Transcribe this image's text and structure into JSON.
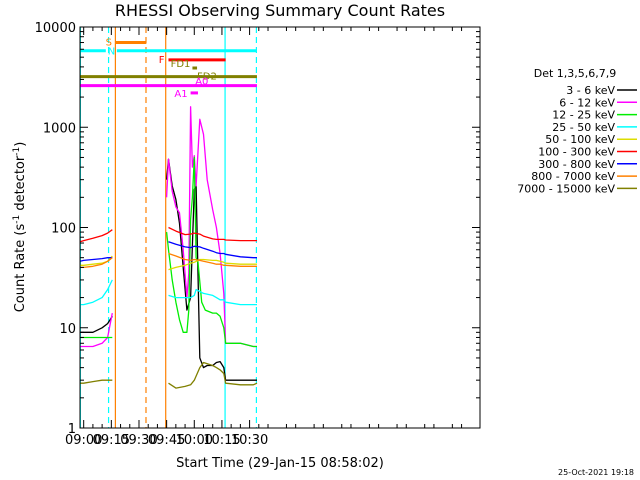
{
  "chart_data": {
    "type": "line",
    "title": "RHESSI Observing Summary Count Rates",
    "xlabel": "Start Time (29-Jan-15 08:58:02)",
    "ylabel_main": "Count Rate (s",
    "ylabel_exp1": "-1",
    "ylabel_mid": " detector",
    "ylabel_exp2": "-1",
    "ylabel_end": ")",
    "x_range_min": [
      538,
      755
    ],
    "y_log_range": [
      1,
      10000
    ],
    "x_ticks": [
      {
        "label": "09:00",
        "min": 540
      },
      {
        "label": "09:15",
        "min": 555
      },
      {
        "label": "09:30",
        "min": 570
      },
      {
        "label": "09:45",
        "min": 585
      },
      {
        "label": "10:00",
        "min": 600
      },
      {
        "label": "10:15",
        "min": 615
      },
      {
        "label": "10:30",
        "min": 630
      }
    ],
    "y_ticks": [
      {
        "label": "1",
        "v": 1
      },
      {
        "label": "10",
        "v": 10
      },
      {
        "label": "100",
        "v": 100
      },
      {
        "label": "1000",
        "v": 1000
      },
      {
        "label": "10000",
        "v": 10000
      }
    ],
    "legend_title": "Det 1,3,5,6,7,9",
    "series": [
      {
        "name": "3 - 6 keV",
        "color": "#000000",
        "x": [
          538,
          540,
          545,
          550,
          553,
          555.5,
          558,
          583,
          585,
          586,
          588,
          590,
          592,
          594,
          596,
          598,
          600,
          601,
          603,
          605,
          607,
          610,
          612,
          614,
          616,
          617,
          625,
          632,
          634
        ],
        "y": [
          9,
          9,
          9,
          10,
          11,
          13,
          null,
          null,
          300,
          480,
          260,
          190,
          110,
          40,
          15,
          20,
          240,
          260,
          5,
          4,
          4.2,
          4.2,
          4.5,
          4.6,
          4,
          3,
          3,
          3,
          3
        ]
      },
      {
        "name": "6 - 12 keV",
        "color": "#ff00ff",
        "x": [
          538,
          540,
          545,
          550,
          553,
          555.5,
          558,
          583,
          585,
          586,
          588,
          590,
          592,
          594,
          596,
          597,
          598,
          599,
          600,
          601,
          603,
          605,
          607,
          610,
          612,
          614,
          616,
          617,
          625,
          632,
          634
        ],
        "y": [
          6.5,
          6.5,
          6.5,
          7,
          8,
          14,
          null,
          null,
          200,
          480,
          230,
          160,
          140,
          60,
          20,
          35,
          1600,
          400,
          520,
          260,
          1200,
          850,
          300,
          150,
          100,
          55,
          22,
          7,
          7,
          6.5,
          6.5
        ]
      },
      {
        "name": "12 - 25 keV",
        "color": "#00ee00",
        "x": [
          538,
          540,
          545,
          550,
          553,
          555.5,
          558,
          583,
          585,
          586,
          588,
          590,
          592,
          594,
          596,
          597,
          598,
          599,
          600,
          601,
          602,
          604,
          606,
          610,
          612,
          614,
          616,
          617,
          625,
          632,
          634
        ],
        "y": [
          8,
          8,
          8,
          8,
          8,
          8,
          null,
          null,
          90,
          60,
          30,
          18,
          12,
          9,
          9,
          15,
          120,
          200,
          500,
          50,
          45,
          18,
          15,
          14,
          14,
          13,
          10,
          7,
          7,
          6.5,
          6.5
        ]
      },
      {
        "name": "25 - 50 keV",
        "color": "#00ffff",
        "x": [
          538,
          540,
          545,
          550,
          553,
          555.5,
          558,
          583,
          586,
          590,
          595,
          598,
          600,
          601,
          603,
          605,
          610,
          612,
          614,
          616,
          617,
          625,
          632,
          634
        ],
        "y": [
          17,
          17,
          18,
          20,
          24,
          30,
          null,
          null,
          21,
          20,
          20,
          20,
          21,
          24,
          23,
          22,
          21,
          20,
          19,
          19,
          18,
          17,
          17,
          17
        ]
      },
      {
        "name": "50 - 100 keV",
        "color": "#dddd00",
        "x": [
          538,
          540,
          545,
          550,
          553,
          555.5,
          558,
          583,
          586,
          590,
          595,
          598,
          600,
          603,
          605,
          610,
          612,
          614,
          616,
          617,
          625,
          632,
          634
        ],
        "y": [
          42,
          42,
          43,
          44,
          46,
          52,
          null,
          null,
          38,
          40,
          42,
          44,
          45,
          48,
          48,
          47,
          47,
          46,
          45,
          44,
          43,
          43,
          43
        ]
      },
      {
        "name": "100 - 300 keV",
        "color": "#ff0000",
        "x": [
          538,
          540,
          545,
          550,
          553,
          555.5,
          558,
          583,
          586,
          590,
          595,
          598,
          600,
          603,
          605,
          610,
          612,
          614,
          616,
          617,
          625,
          632,
          634
        ],
        "y": [
          72,
          74,
          78,
          83,
          88,
          95,
          null,
          null,
          100,
          92,
          85,
          86,
          88,
          86,
          82,
          77,
          76,
          76,
          76,
          75,
          74,
          74,
          74
        ]
      },
      {
        "name": "300 - 800 keV",
        "color": "#0000ff",
        "x": [
          538,
          540,
          545,
          550,
          553,
          555.5,
          558,
          583,
          586,
          590,
          595,
          598,
          600,
          603,
          605,
          610,
          612,
          614,
          616,
          617,
          625,
          632,
          634
        ],
        "y": [
          46,
          47,
          48,
          49,
          50,
          50,
          null,
          null,
          72,
          68,
          64,
          63,
          65,
          64,
          62,
          58,
          56,
          55,
          55,
          54,
          51,
          50,
          50
        ]
      },
      {
        "name": "800 - 7000 keV",
        "color": "#ff8000",
        "x": [
          538,
          540,
          545,
          550,
          553,
          555.5,
          558,
          583,
          586,
          590,
          595,
          598,
          600,
          603,
          605,
          610,
          612,
          614,
          616,
          617,
          625,
          632,
          634
        ],
        "y": [
          40,
          40,
          41,
          43,
          46,
          50,
          null,
          null,
          55,
          52,
          48,
          47,
          48,
          47,
          46,
          44,
          43,
          43,
          42,
          42,
          41,
          41,
          41
        ]
      },
      {
        "name": "7000 - 15000 keV",
        "color": "#808000",
        "x": [
          538,
          540,
          545,
          550,
          553,
          555.5,
          558,
          583,
          586,
          590,
          595,
          598,
          600,
          603,
          605,
          610,
          612,
          614,
          616,
          617,
          625,
          632,
          634
        ],
        "y": [
          2.8,
          2.8,
          2.9,
          3,
          3,
          3,
          null,
          null,
          2.8,
          2.5,
          2.6,
          2.7,
          3,
          4,
          4.5,
          4.2,
          4,
          3.8,
          3.5,
          2.8,
          2.7,
          2.7,
          2.8
        ]
      }
    ],
    "flag_bars": [
      {
        "label": "S",
        "x0": 557,
        "x1": 574,
        "y": 7000,
        "color": "#ff8000"
      },
      {
        "label": "N",
        "x0": 538,
        "x1": 552,
        "y": 5800,
        "color": "#00ffff"
      },
      {
        "label": "N",
        "x0": 558,
        "x1": 634,
        "y": 5800,
        "color": "#00ffff",
        "hide_label": true
      },
      {
        "label": "F",
        "x0": 586,
        "x1": 617,
        "y": 4700,
        "color": "#ff0000"
      },
      {
        "label": "FD1",
        "x0": 599,
        "x1": 601.5,
        "y": 3900,
        "color": "#808000",
        "label_color": "#808000"
      },
      {
        "label": "FD2",
        "x0": 538,
        "x1": 634,
        "y": 3200,
        "color": "#808000",
        "label_color": "#808000"
      },
      {
        "label": "A0",
        "x0": 538,
        "x1": 634,
        "y": 2600,
        "color": "#ff00ff"
      },
      {
        "label": "A1",
        "x0": 598,
        "x1": 602,
        "y": 2200,
        "color": "#ff00ff"
      }
    ],
    "vlines": [
      {
        "x": 538.2,
        "color": "#00ffff",
        "style": "solid"
      },
      {
        "x": 553.5,
        "color": "#00ffff",
        "style": "dashed"
      },
      {
        "x": 557.2,
        "color": "#ff8000",
        "style": "solid"
      },
      {
        "x": 573.8,
        "color": "#ff8000",
        "style": "dashed"
      },
      {
        "x": 584.5,
        "color": "#ff8000",
        "style": "solid"
      },
      {
        "x": 616.7,
        "color": "#00ffff",
        "style": "solid"
      },
      {
        "x": 633.7,
        "color": "#00ffff",
        "style": "dashed"
      }
    ],
    "timestamp": "25-Oct-2021 19:18"
  }
}
